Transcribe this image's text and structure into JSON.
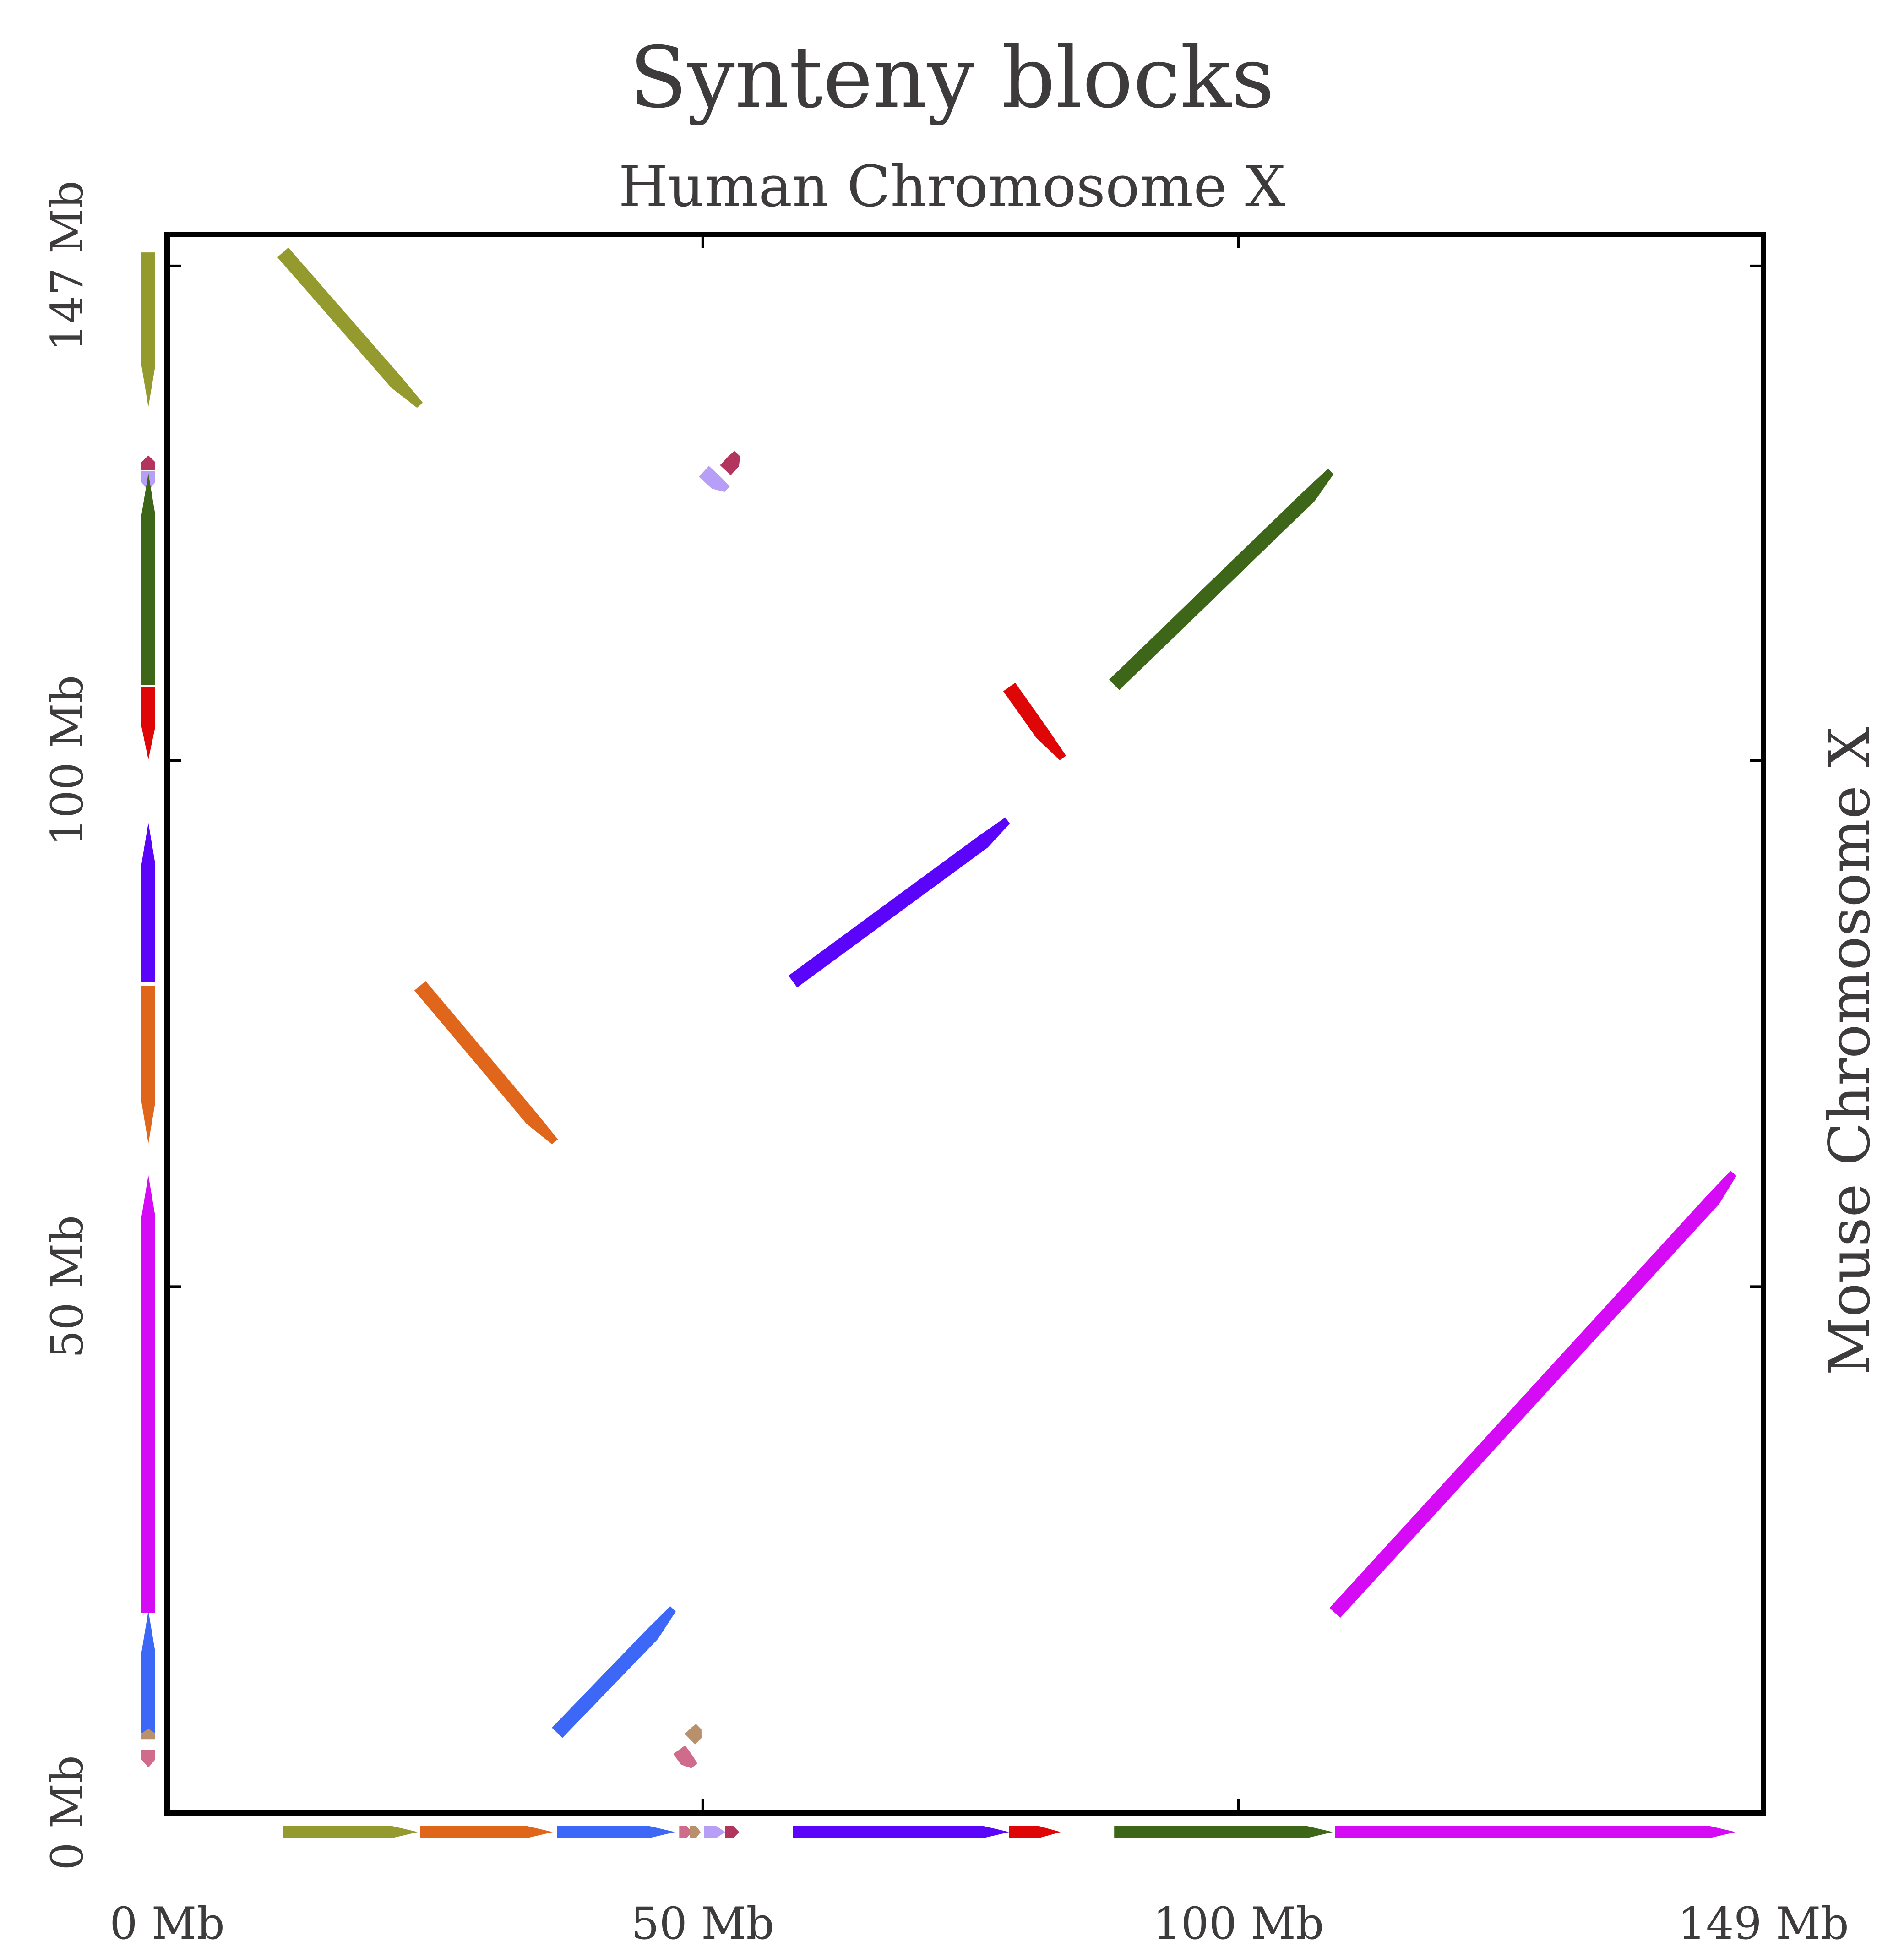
{
  "chart_data": {
    "type": "synteny-dot-plot",
    "title": "Synteny blocks",
    "xlabel": "Human Chromosome X",
    "ylabel": "Mouse Chromosome X",
    "xlim": [
      0,
      149
    ],
    "ylim": [
      0,
      150
    ],
    "x_ticks": [
      0,
      50,
      100,
      149
    ],
    "y_ticks": [
      0,
      50,
      100,
      147
    ],
    "x_tick_labels": [
      "0 Mb",
      "50 Mb",
      "100 Mb",
      "149 Mb"
    ],
    "y_tick_labels": [
      "0 Mb",
      "50 Mb",
      "100 Mb",
      "147 Mb"
    ],
    "grid": false,
    "blocks": [
      {
        "color": "#959a2e",
        "x": [
          10.8,
          23.4
        ],
        "y": [
          148.3,
          133.6
        ]
      },
      {
        "color": "#df661a",
        "x": [
          23.6,
          36.0
        ],
        "y": [
          78.6,
          63.6
        ]
      },
      {
        "color": "#3d67f6",
        "x": [
          36.4,
          47.4
        ],
        "y": [
          7.6,
          19.2
        ]
      },
      {
        "color": "#cf6b8b",
        "x": [
          47.8,
          49.0
        ],
        "y": [
          6.0,
          4.3
        ]
      },
      {
        "color": "#b9906c",
        "x": [
          48.8,
          49.8
        ],
        "y": [
          7.0,
          8.0
        ]
      },
      {
        "color": "#b79ef6",
        "x": [
          50.1,
          52.1
        ],
        "y": [
          127.5,
          125.6
        ]
      },
      {
        "color": "#b3345d",
        "x": [
          52.1,
          53.4
        ],
        "y": [
          127.6,
          129.0
        ]
      },
      {
        "color": "#5a04fa",
        "x": [
          58.4,
          78.6
        ],
        "y": [
          79.0,
          94.1
        ]
      },
      {
        "color": "#de0606",
        "x": [
          78.6,
          83.4
        ],
        "y": [
          107.0,
          100.1
        ]
      },
      {
        "color": "#3e6618",
        "x": [
          88.4,
          108.8
        ],
        "y": [
          107.2,
          127.3
        ]
      },
      {
        "color": "#d60bf6",
        "x": [
          109.0,
          146.4
        ],
        "y": [
          19.0,
          60.6
        ]
      }
    ]
  }
}
